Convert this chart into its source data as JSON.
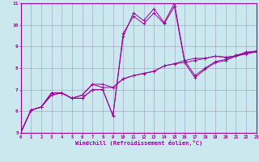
{
  "xlabel": "Windchill (Refroidissement éolien,°C)",
  "background_color": "#cce8ef",
  "line_color": "#990099",
  "grid_color": "#9999bb",
  "xlim": [
    0,
    23
  ],
  "ylim": [
    5,
    11
  ],
  "xticks": [
    0,
    1,
    2,
    3,
    4,
    5,
    6,
    7,
    8,
    9,
    10,
    11,
    12,
    13,
    14,
    15,
    16,
    17,
    18,
    19,
    20,
    21,
    22,
    23
  ],
  "yticks": [
    5,
    6,
    7,
    8,
    9,
    10,
    11
  ],
  "hours": [
    0,
    1,
    2,
    3,
    4,
    5,
    6,
    7,
    8,
    9,
    10,
    11,
    12,
    13,
    14,
    15,
    16,
    17,
    18,
    19,
    20,
    21,
    22,
    23
  ],
  "line1": [
    5.0,
    6.05,
    6.2,
    6.85,
    6.85,
    6.6,
    6.75,
    7.25,
    7.25,
    7.1,
    7.5,
    7.65,
    7.75,
    7.85,
    8.1,
    8.2,
    8.25,
    8.35,
    8.45,
    8.55,
    8.5,
    8.55,
    8.7,
    8.75
  ],
  "line2": [
    5.0,
    6.05,
    6.2,
    6.75,
    6.85,
    6.6,
    6.6,
    7.0,
    7.0,
    5.8,
    9.6,
    10.4,
    10.05,
    10.55,
    10.05,
    10.85,
    8.25,
    7.55,
    7.95,
    8.25,
    8.35,
    8.55,
    8.65,
    8.75
  ],
  "line3": [
    5.0,
    6.05,
    6.2,
    6.85,
    6.85,
    6.6,
    6.75,
    7.25,
    7.1,
    7.1,
    7.5,
    7.65,
    7.75,
    7.85,
    8.1,
    8.2,
    8.35,
    8.45,
    8.45,
    8.55,
    8.5,
    8.55,
    8.75,
    8.75
  ],
  "line4": [
    5.0,
    6.05,
    6.2,
    6.75,
    6.85,
    6.6,
    6.6,
    7.0,
    7.0,
    5.8,
    9.45,
    10.55,
    10.2,
    10.75,
    10.1,
    11.0,
    8.35,
    7.65,
    8.0,
    8.3,
    8.4,
    8.6,
    8.7,
    8.8
  ]
}
